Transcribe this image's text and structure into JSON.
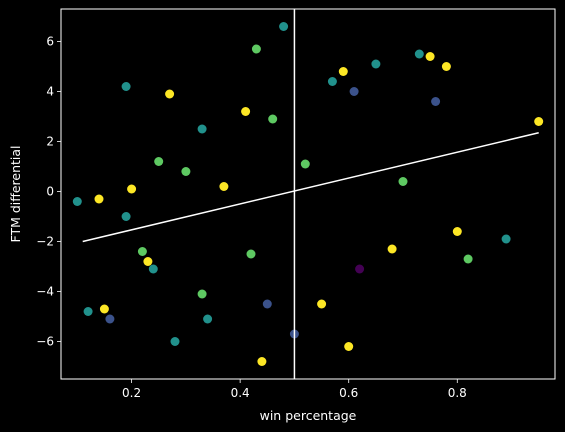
{
  "chart_data": {
    "type": "scatter",
    "xlabel": "win percentage",
    "ylabel": "FTM differential",
    "xlim": [
      0.07,
      0.98
    ],
    "ylim": [
      -7.5,
      7.3
    ],
    "xticks": [
      0.2,
      0.4,
      0.6,
      0.8
    ],
    "yticks": [
      -6,
      -4,
      -2,
      0,
      2,
      4,
      6
    ],
    "xtick_labels": [
      "0.2",
      "0.4",
      "0.6",
      "0.8"
    ],
    "ytick_labels": [
      "−6",
      "−4",
      "−2",
      "0",
      "2",
      "4",
      "6"
    ],
    "grid": false,
    "background": "#000000",
    "foreground": "#ffffff",
    "colormap": "viridis",
    "colormap_stops": [
      "#440154",
      "#3b528b",
      "#21918c",
      "#5ec962",
      "#fde725"
    ],
    "vertical_line": {
      "x": 0.5,
      "color": "#ffffff"
    },
    "trend_line": {
      "x": [
        0.11,
        0.95
      ],
      "y": [
        -2.0,
        2.35
      ],
      "color": "#ffffff"
    },
    "series": [
      {
        "points": [
          [
            0.14,
            -0.3,
            4
          ],
          [
            0.15,
            -4.7,
            4
          ],
          [
            0.16,
            -5.1,
            1
          ],
          [
            0.19,
            -1.0,
            2
          ],
          [
            0.2,
            0.1,
            4
          ],
          [
            0.22,
            -2.4,
            3
          ],
          [
            0.23,
            -2.8,
            4
          ],
          [
            0.24,
            -3.1,
            2
          ],
          [
            0.25,
            1.2,
            3
          ],
          [
            0.27,
            3.9,
            4
          ],
          [
            0.3,
            0.8,
            3
          ],
          [
            0.33,
            -4.1,
            3
          ],
          [
            0.34,
            -5.1,
            2
          ],
          [
            0.37,
            0.2,
            4
          ],
          [
            0.41,
            3.2,
            4
          ],
          [
            0.42,
            -2.5,
            3
          ],
          [
            0.43,
            5.7,
            3
          ],
          [
            0.44,
            -6.8,
            4
          ],
          [
            0.45,
            -4.5,
            1
          ],
          [
            0.48,
            6.6,
            2
          ],
          [
            0.5,
            -5.7,
            1
          ],
          [
            0.52,
            1.1,
            3
          ],
          [
            0.55,
            -4.5,
            4
          ],
          [
            0.57,
            4.4,
            2
          ],
          [
            0.59,
            4.8,
            4
          ],
          [
            0.6,
            -6.2,
            4
          ],
          [
            0.61,
            4.0,
            1
          ],
          [
            0.65,
            5.1,
            2
          ],
          [
            0.7,
            0.4,
            3
          ],
          [
            0.73,
            5.5,
            2
          ],
          [
            0.75,
            5.4,
            4
          ],
          [
            0.76,
            3.6,
            1
          ],
          [
            0.8,
            -1.6,
            4
          ],
          [
            0.82,
            -2.7,
            3
          ],
          [
            0.89,
            -1.9,
            2
          ],
          [
            0.95,
            2.8,
            4
          ],
          [
            0.28,
            -6.0,
            2
          ],
          [
            0.68,
            -2.3,
            4
          ],
          [
            0.19,
            4.2,
            2
          ],
          [
            0.12,
            -4.8,
            2
          ],
          [
            0.1,
            -0.4,
            2
          ],
          [
            0.78,
            5.0,
            4
          ],
          [
            0.46,
            2.9,
            3
          ],
          [
            0.33,
            2.5,
            2
          ],
          [
            0.62,
            -3.1,
            0
          ]
        ]
      }
    ]
  }
}
